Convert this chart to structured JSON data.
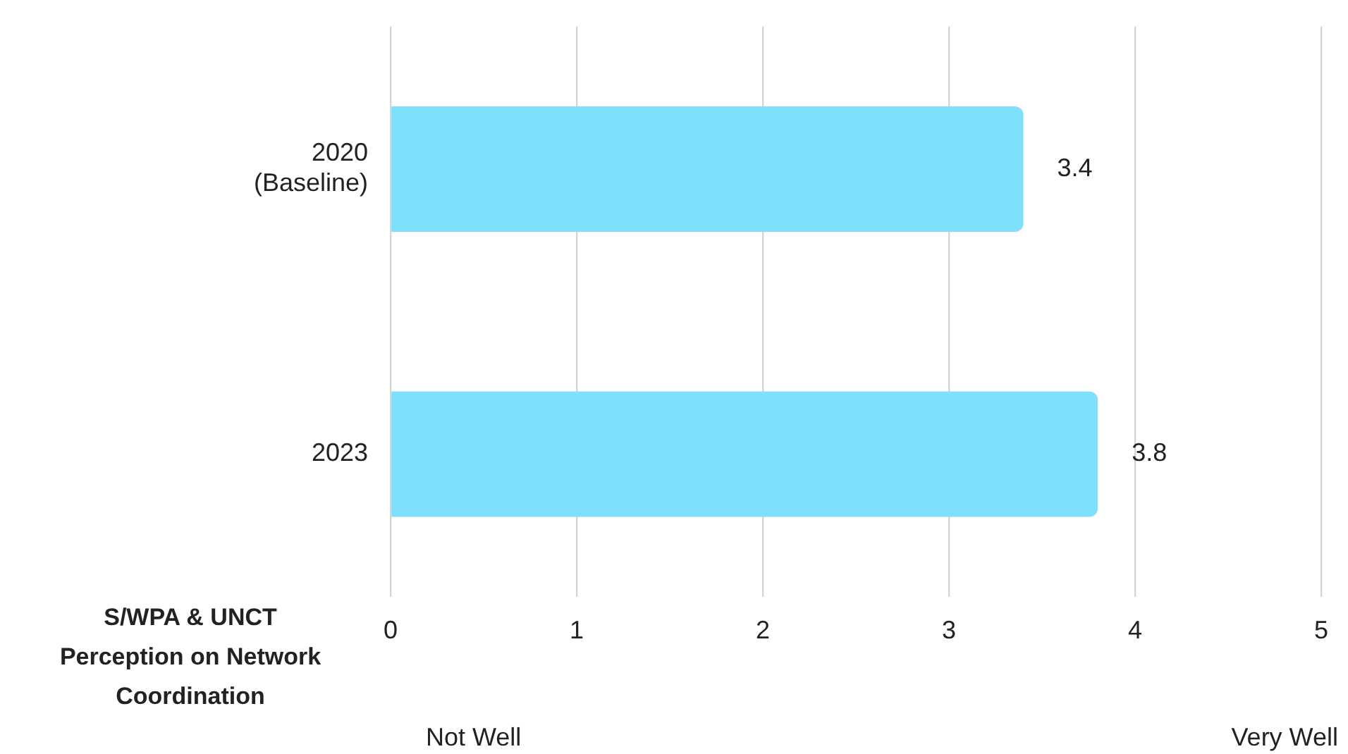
{
  "chart_data": {
    "type": "bar",
    "orientation": "horizontal",
    "title": "S/WPA & UNCT Perception on Network Coordination",
    "categories": [
      "2020 (Baseline)",
      "2023"
    ],
    "values": [
      3.4,
      3.8
    ],
    "color": "#7ee0fd",
    "data_labels": true,
    "xlim": [
      0,
      5
    ],
    "xticks": [
      0,
      1,
      2,
      3,
      4,
      5
    ],
    "grid": "x",
    "legend": false,
    "annotations": [
      "Not Well",
      "Very Well"
    ]
  }
}
